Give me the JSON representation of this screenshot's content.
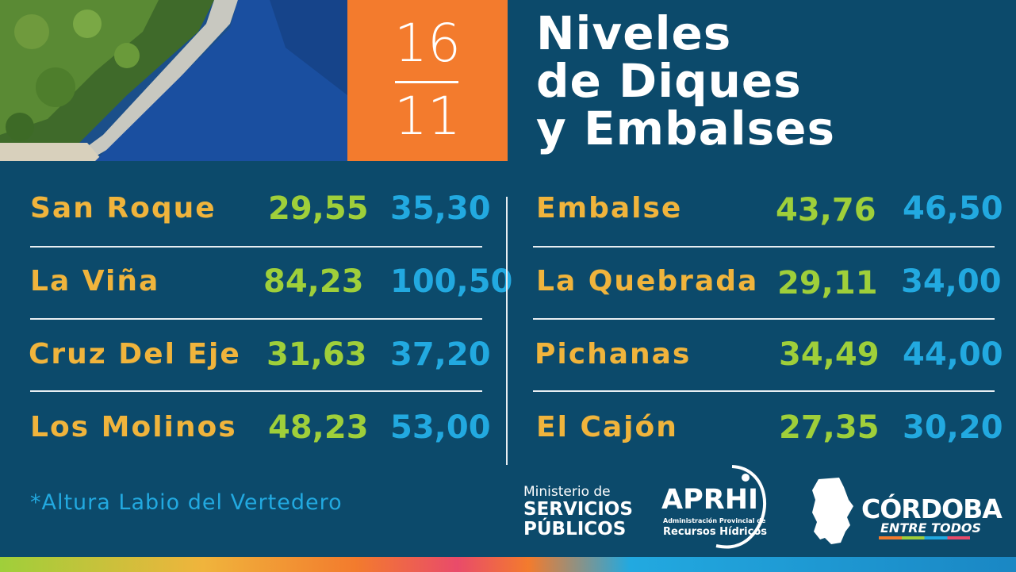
{
  "date": {
    "day": "16",
    "month": "11"
  },
  "title": {
    "line1": "Niveles",
    "line2": "de Diques",
    "line3": "y Embalses"
  },
  "left_rows": [
    {
      "name": "San Roque",
      "level": "29,55",
      "max": "35,30"
    },
    {
      "name": "La Viña",
      "level": "84,23",
      "max": "100,50"
    },
    {
      "name": "Cruz Del Eje",
      "level": "31,63",
      "max": "37,20"
    },
    {
      "name": "Los Molinos",
      "level": "48,23",
      "max": "53,00"
    }
  ],
  "right_rows": [
    {
      "name": "Embalse",
      "level": "43,76",
      "max": "46,50"
    },
    {
      "name": "La Quebrada",
      "level": "29,11",
      "max": "34,00"
    },
    {
      "name": "Pichanas",
      "level": "34,49",
      "max": "44,00"
    },
    {
      "name": "El Cajón",
      "level": "27,35",
      "max": "30,20"
    }
  ],
  "footnote": "*Altura Labio del Vertedero",
  "logos": {
    "ministerio": {
      "line1": "Ministerio de",
      "line2": "SERVICIOS",
      "line3": "PÚBLICOS"
    },
    "aprhi": {
      "name": "APRHI",
      "sub1": "Administración Provincial de",
      "sub2": "Recursos Hídricos"
    },
    "cordoba": {
      "name": "CÓRDOBA",
      "sub": "ENTRE TODOS"
    }
  },
  "colors": {
    "background": "#0c4a6b",
    "orange": "#f37b2d",
    "name_yellow": "#f0b43c",
    "level_green": "#9fcf3a",
    "max_blue": "#22a9e0"
  }
}
